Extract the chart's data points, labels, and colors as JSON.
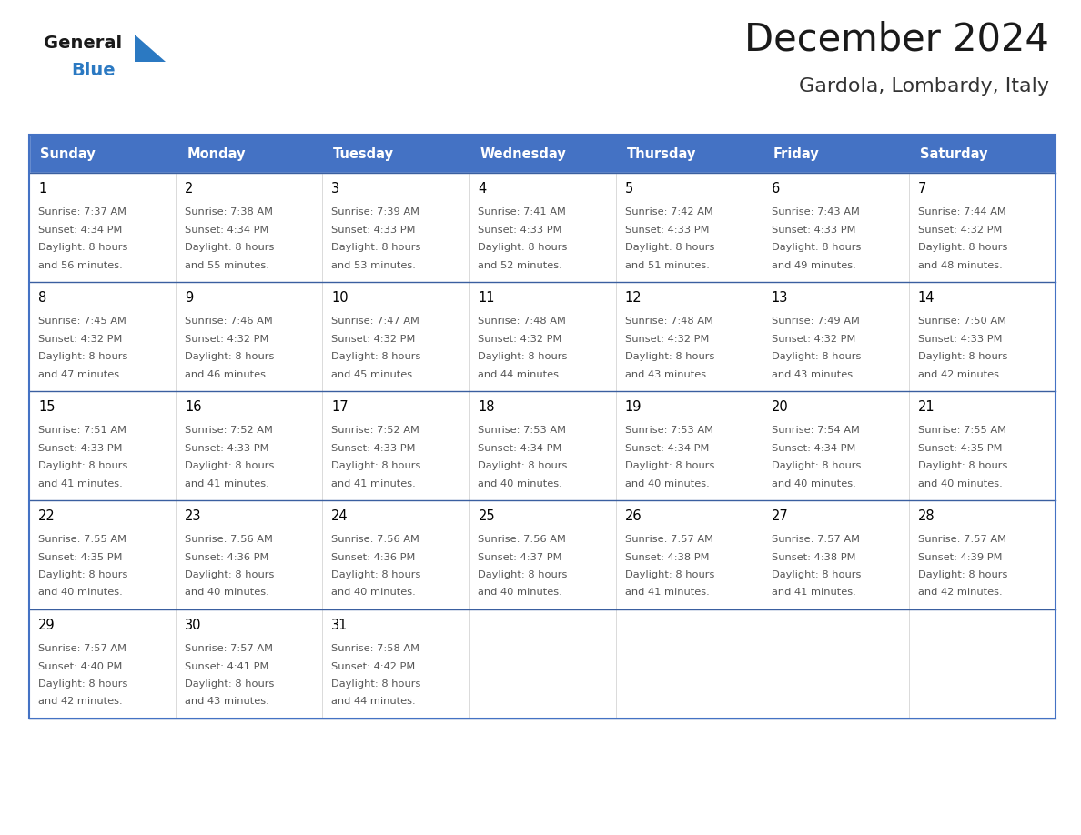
{
  "title": "December 2024",
  "subtitle": "Gardola, Lombardy, Italy",
  "header_bg": "#4472C4",
  "header_text_color": "#FFFFFF",
  "header_days": [
    "Sunday",
    "Monday",
    "Tuesday",
    "Wednesday",
    "Thursday",
    "Friday",
    "Saturday"
  ],
  "cell_border_color": "#4472C4",
  "row_border_color": "#3a5fa0",
  "cell_bg_color": "#FFFFFF",
  "alt_row_bg": "#f2f2f2",
  "day_number_color": "#000000",
  "cell_text_color": "#555555",
  "title_color": "#1a1a1a",
  "subtitle_color": "#333333",
  "logo_general_color": "#1a1a1a",
  "logo_blue_color": "#2B79C2",
  "calendar": [
    [
      {
        "day": 1,
        "sunrise": "7:37 AM",
        "sunset": "4:34 PM",
        "daylight": "8 hours and 56 minutes"
      },
      {
        "day": 2,
        "sunrise": "7:38 AM",
        "sunset": "4:34 PM",
        "daylight": "8 hours and 55 minutes"
      },
      {
        "day": 3,
        "sunrise": "7:39 AM",
        "sunset": "4:33 PM",
        "daylight": "8 hours and 53 minutes"
      },
      {
        "day": 4,
        "sunrise": "7:41 AM",
        "sunset": "4:33 PM",
        "daylight": "8 hours and 52 minutes"
      },
      {
        "day": 5,
        "sunrise": "7:42 AM",
        "sunset": "4:33 PM",
        "daylight": "8 hours and 51 minutes"
      },
      {
        "day": 6,
        "sunrise": "7:43 AM",
        "sunset": "4:33 PM",
        "daylight": "8 hours and 49 minutes"
      },
      {
        "day": 7,
        "sunrise": "7:44 AM",
        "sunset": "4:32 PM",
        "daylight": "8 hours and 48 minutes"
      }
    ],
    [
      {
        "day": 8,
        "sunrise": "7:45 AM",
        "sunset": "4:32 PM",
        "daylight": "8 hours and 47 minutes"
      },
      {
        "day": 9,
        "sunrise": "7:46 AM",
        "sunset": "4:32 PM",
        "daylight": "8 hours and 46 minutes"
      },
      {
        "day": 10,
        "sunrise": "7:47 AM",
        "sunset": "4:32 PM",
        "daylight": "8 hours and 45 minutes"
      },
      {
        "day": 11,
        "sunrise": "7:48 AM",
        "sunset": "4:32 PM",
        "daylight": "8 hours and 44 minutes"
      },
      {
        "day": 12,
        "sunrise": "7:48 AM",
        "sunset": "4:32 PM",
        "daylight": "8 hours and 43 minutes"
      },
      {
        "day": 13,
        "sunrise": "7:49 AM",
        "sunset": "4:32 PM",
        "daylight": "8 hours and 43 minutes"
      },
      {
        "day": 14,
        "sunrise": "7:50 AM",
        "sunset": "4:33 PM",
        "daylight": "8 hours and 42 minutes"
      }
    ],
    [
      {
        "day": 15,
        "sunrise": "7:51 AM",
        "sunset": "4:33 PM",
        "daylight": "8 hours and 41 minutes"
      },
      {
        "day": 16,
        "sunrise": "7:52 AM",
        "sunset": "4:33 PM",
        "daylight": "8 hours and 41 minutes"
      },
      {
        "day": 17,
        "sunrise": "7:52 AM",
        "sunset": "4:33 PM",
        "daylight": "8 hours and 41 minutes"
      },
      {
        "day": 18,
        "sunrise": "7:53 AM",
        "sunset": "4:34 PM",
        "daylight": "8 hours and 40 minutes"
      },
      {
        "day": 19,
        "sunrise": "7:53 AM",
        "sunset": "4:34 PM",
        "daylight": "8 hours and 40 minutes"
      },
      {
        "day": 20,
        "sunrise": "7:54 AM",
        "sunset": "4:34 PM",
        "daylight": "8 hours and 40 minutes"
      },
      {
        "day": 21,
        "sunrise": "7:55 AM",
        "sunset": "4:35 PM",
        "daylight": "8 hours and 40 minutes"
      }
    ],
    [
      {
        "day": 22,
        "sunrise": "7:55 AM",
        "sunset": "4:35 PM",
        "daylight": "8 hours and 40 minutes"
      },
      {
        "day": 23,
        "sunrise": "7:56 AM",
        "sunset": "4:36 PM",
        "daylight": "8 hours and 40 minutes"
      },
      {
        "day": 24,
        "sunrise": "7:56 AM",
        "sunset": "4:36 PM",
        "daylight": "8 hours and 40 minutes"
      },
      {
        "day": 25,
        "sunrise": "7:56 AM",
        "sunset": "4:37 PM",
        "daylight": "8 hours and 40 minutes"
      },
      {
        "day": 26,
        "sunrise": "7:57 AM",
        "sunset": "4:38 PM",
        "daylight": "8 hours and 41 minutes"
      },
      {
        "day": 27,
        "sunrise": "7:57 AM",
        "sunset": "4:38 PM",
        "daylight": "8 hours and 41 minutes"
      },
      {
        "day": 28,
        "sunrise": "7:57 AM",
        "sunset": "4:39 PM",
        "daylight": "8 hours and 42 minutes"
      }
    ],
    [
      {
        "day": 29,
        "sunrise": "7:57 AM",
        "sunset": "4:40 PM",
        "daylight": "8 hours and 42 minutes"
      },
      {
        "day": 30,
        "sunrise": "7:57 AM",
        "sunset": "4:41 PM",
        "daylight": "8 hours and 43 minutes"
      },
      {
        "day": 31,
        "sunrise": "7:58 AM",
        "sunset": "4:42 PM",
        "daylight": "8 hours and 44 minutes"
      },
      null,
      null,
      null,
      null
    ]
  ],
  "fig_width": 11.88,
  "fig_height": 9.18
}
